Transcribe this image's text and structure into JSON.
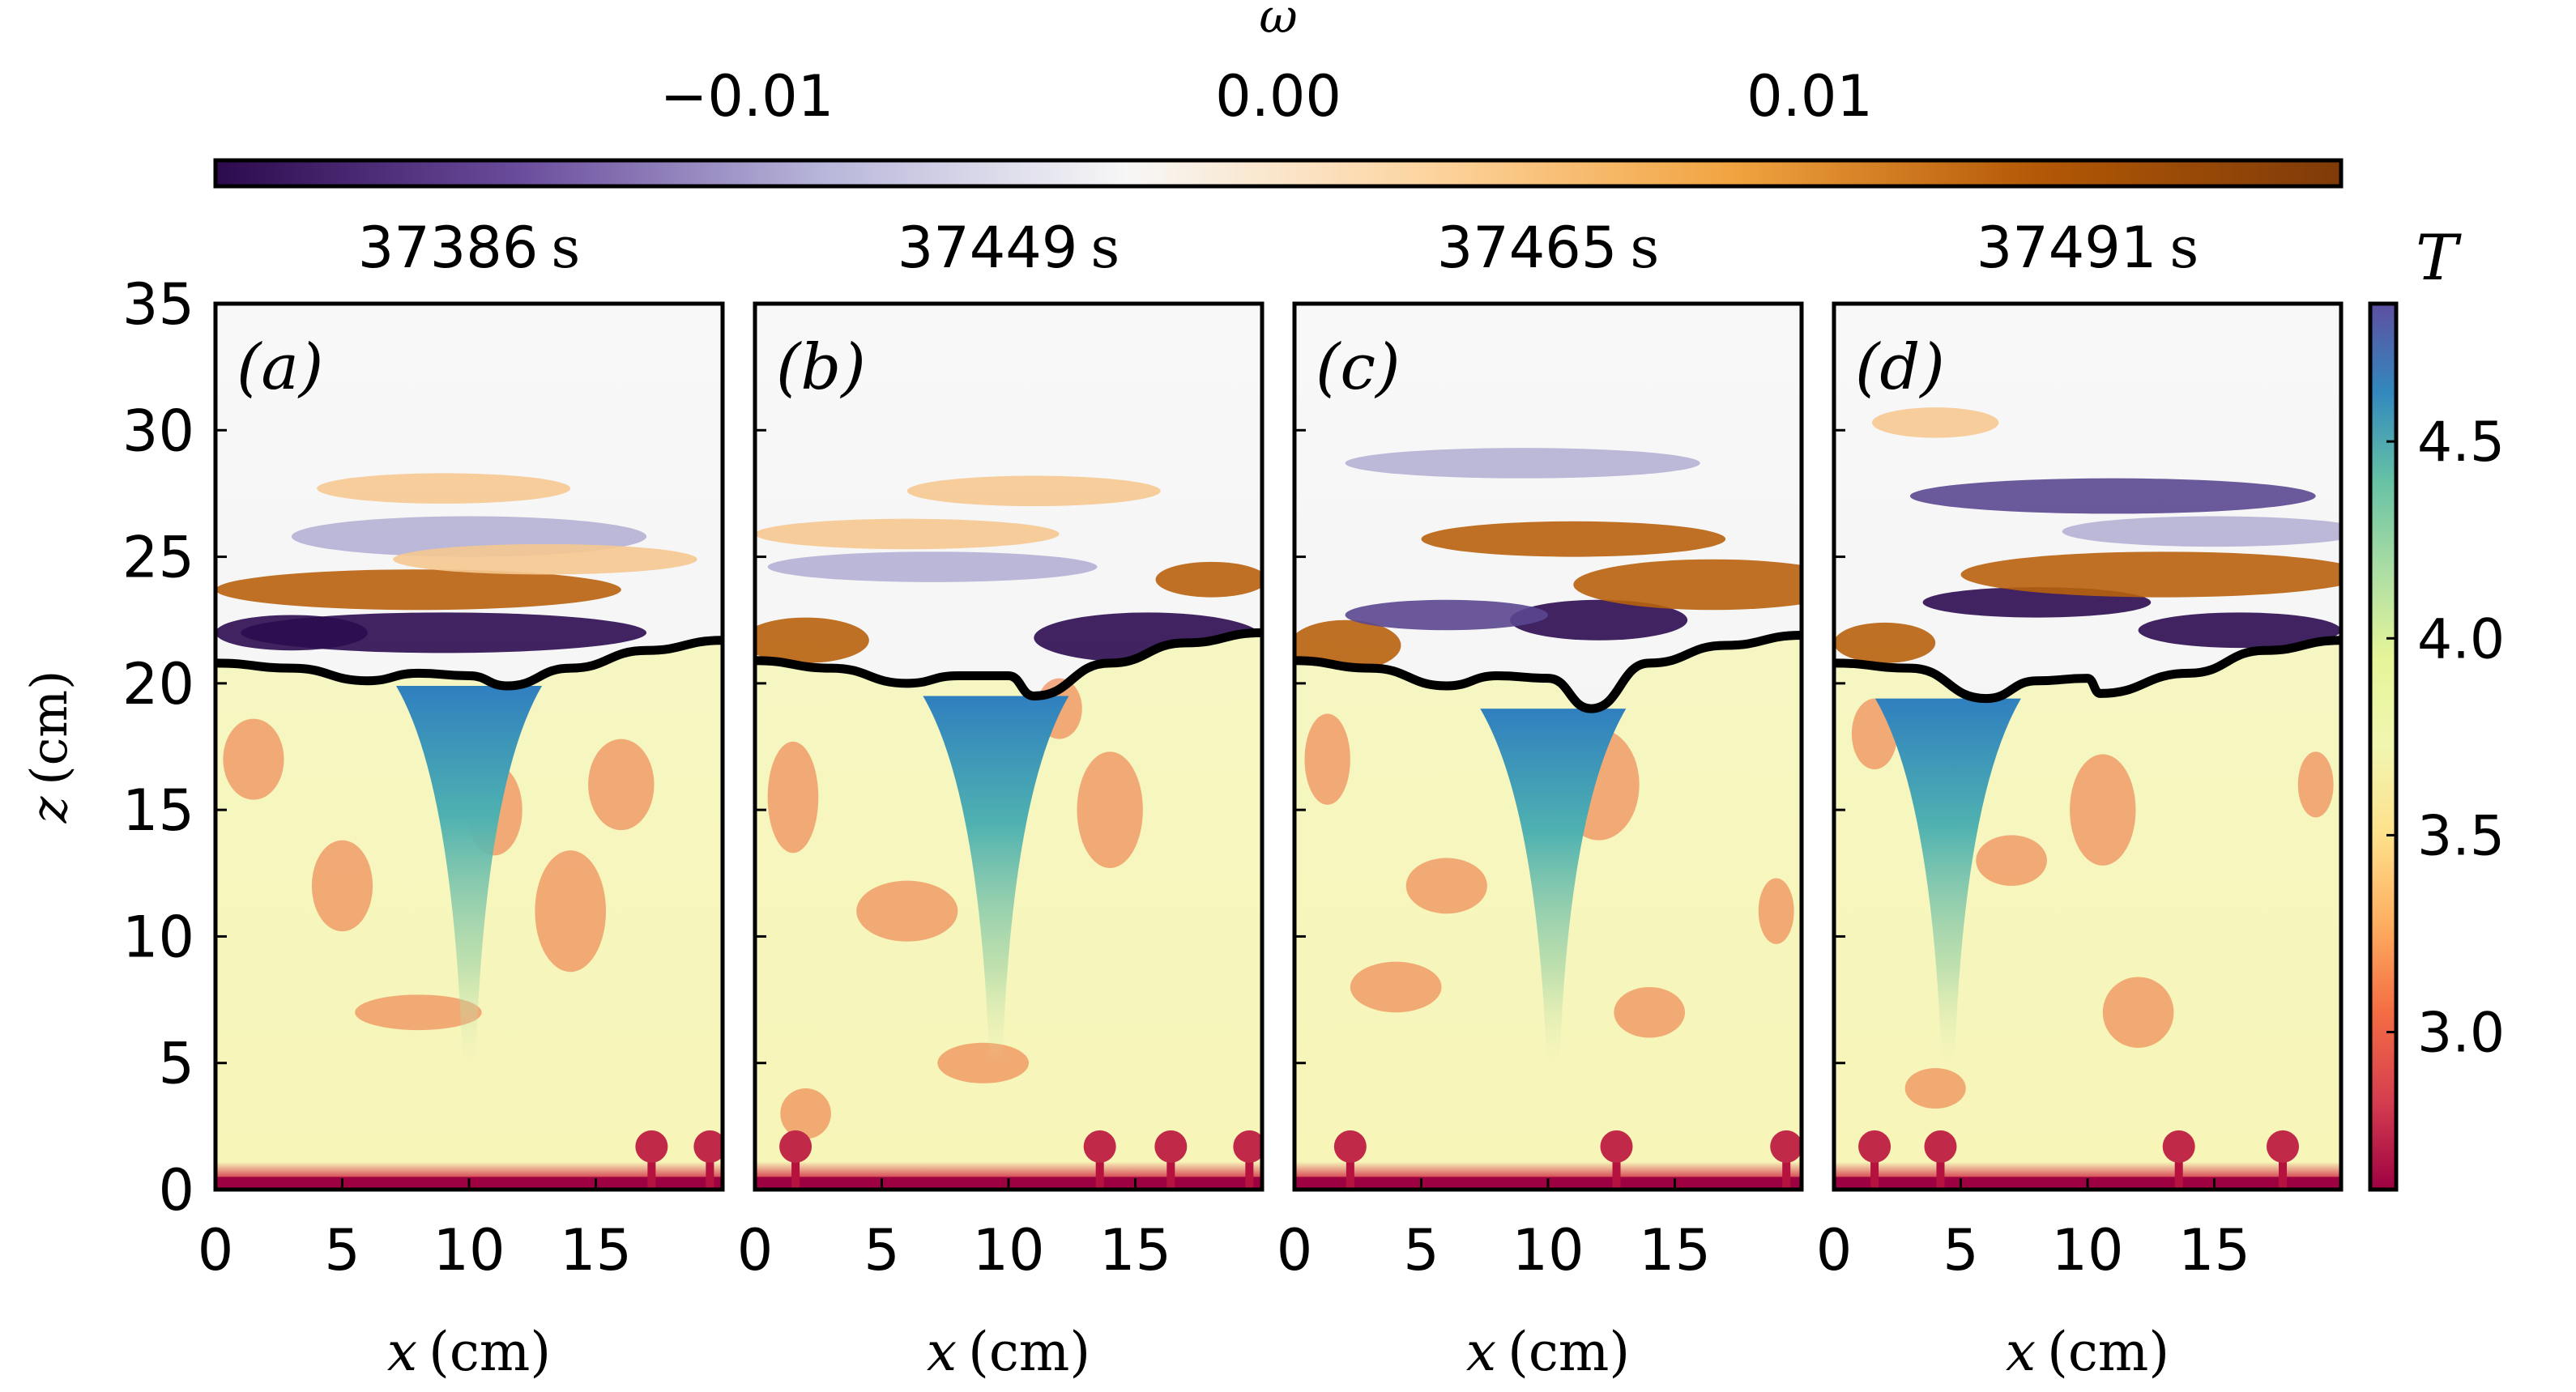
{
  "chart_data": {
    "type": "heatmap",
    "panels": [
      {
        "label": "(a)",
        "time": "37386",
        "time_unit": "s"
      },
      {
        "label": "(b)",
        "time": "37449",
        "time_unit": "s"
      },
      {
        "label": "(c)",
        "time": "37465",
        "time_unit": "s"
      },
      {
        "label": "(d)",
        "time": "37491",
        "time_unit": "s"
      }
    ],
    "xlabel": {
      "var": "x",
      "unit": "(cm)"
    },
    "ylabel": {
      "var": "z",
      "unit": "(cm)"
    },
    "xlim": [
      0,
      20
    ],
    "ylim": [
      0,
      35
    ],
    "xticks": [
      0,
      5,
      10,
      15
    ],
    "yticks": [
      0,
      5,
      10,
      15,
      20,
      25,
      30,
      35
    ],
    "omega_colorbar": {
      "label": "ω",
      "range": [
        -0.02,
        0.02
      ],
      "ticks": [
        -0.01,
        0.0,
        0.01
      ],
      "tick_labels": [
        "−0.01",
        "0.00",
        "0.01"
      ],
      "colors": [
        "#2d0a4e",
        "#6a4c9c",
        "#b8b6da",
        "#f7f7f7",
        "#fdd49e",
        "#f1a340",
        "#b35806",
        "#7f3b08"
      ]
    },
    "T_colorbar": {
      "label": "T",
      "range": [
        2.6,
        4.85
      ],
      "ticks": [
        3.0,
        3.5,
        4.0,
        4.5
      ],
      "tick_labels": [
        "3.0",
        "3.5",
        "4.0",
        "4.5"
      ],
      "colors": [
        "#9e0142",
        "#d53e4f",
        "#f46d43",
        "#fdae61",
        "#fee08b",
        "#f1f6b0",
        "#e6f598",
        "#abdda4",
        "#66c2a5",
        "#3288bd",
        "#5e4fa2"
      ]
    },
    "interface_height": [
      [
        [
          0,
          20.8
        ],
        [
          3,
          20.6
        ],
        [
          6,
          20.1
        ],
        [
          8,
          20.4
        ],
        [
          10,
          20.3
        ],
        [
          11.5,
          19.9
        ],
        [
          14,
          20.6
        ],
        [
          17,
          21.3
        ],
        [
          20,
          21.7
        ]
      ],
      [
        [
          0,
          20.9
        ],
        [
          3,
          20.6
        ],
        [
          6,
          20.0
        ],
        [
          8,
          20.3
        ],
        [
          10,
          20.3
        ],
        [
          11,
          19.5
        ],
        [
          14,
          20.8
        ],
        [
          17,
          21.6
        ],
        [
          20,
          22.0
        ]
      ],
      [
        [
          0,
          20.9
        ],
        [
          3,
          20.6
        ],
        [
          6,
          19.9
        ],
        [
          8,
          20.3
        ],
        [
          10,
          20.2
        ],
        [
          11.7,
          19.0
        ],
        [
          14,
          20.8
        ],
        [
          17,
          21.5
        ],
        [
          20,
          21.9
        ]
      ],
      [
        [
          0,
          20.8
        ],
        [
          3,
          20.6
        ],
        [
          6,
          19.4
        ],
        [
          8,
          20.1
        ],
        [
          10,
          20.2
        ],
        [
          10.5,
          19.6
        ],
        [
          14,
          20.4
        ],
        [
          17,
          21.3
        ],
        [
          20,
          21.7
        ]
      ]
    ]
  }
}
